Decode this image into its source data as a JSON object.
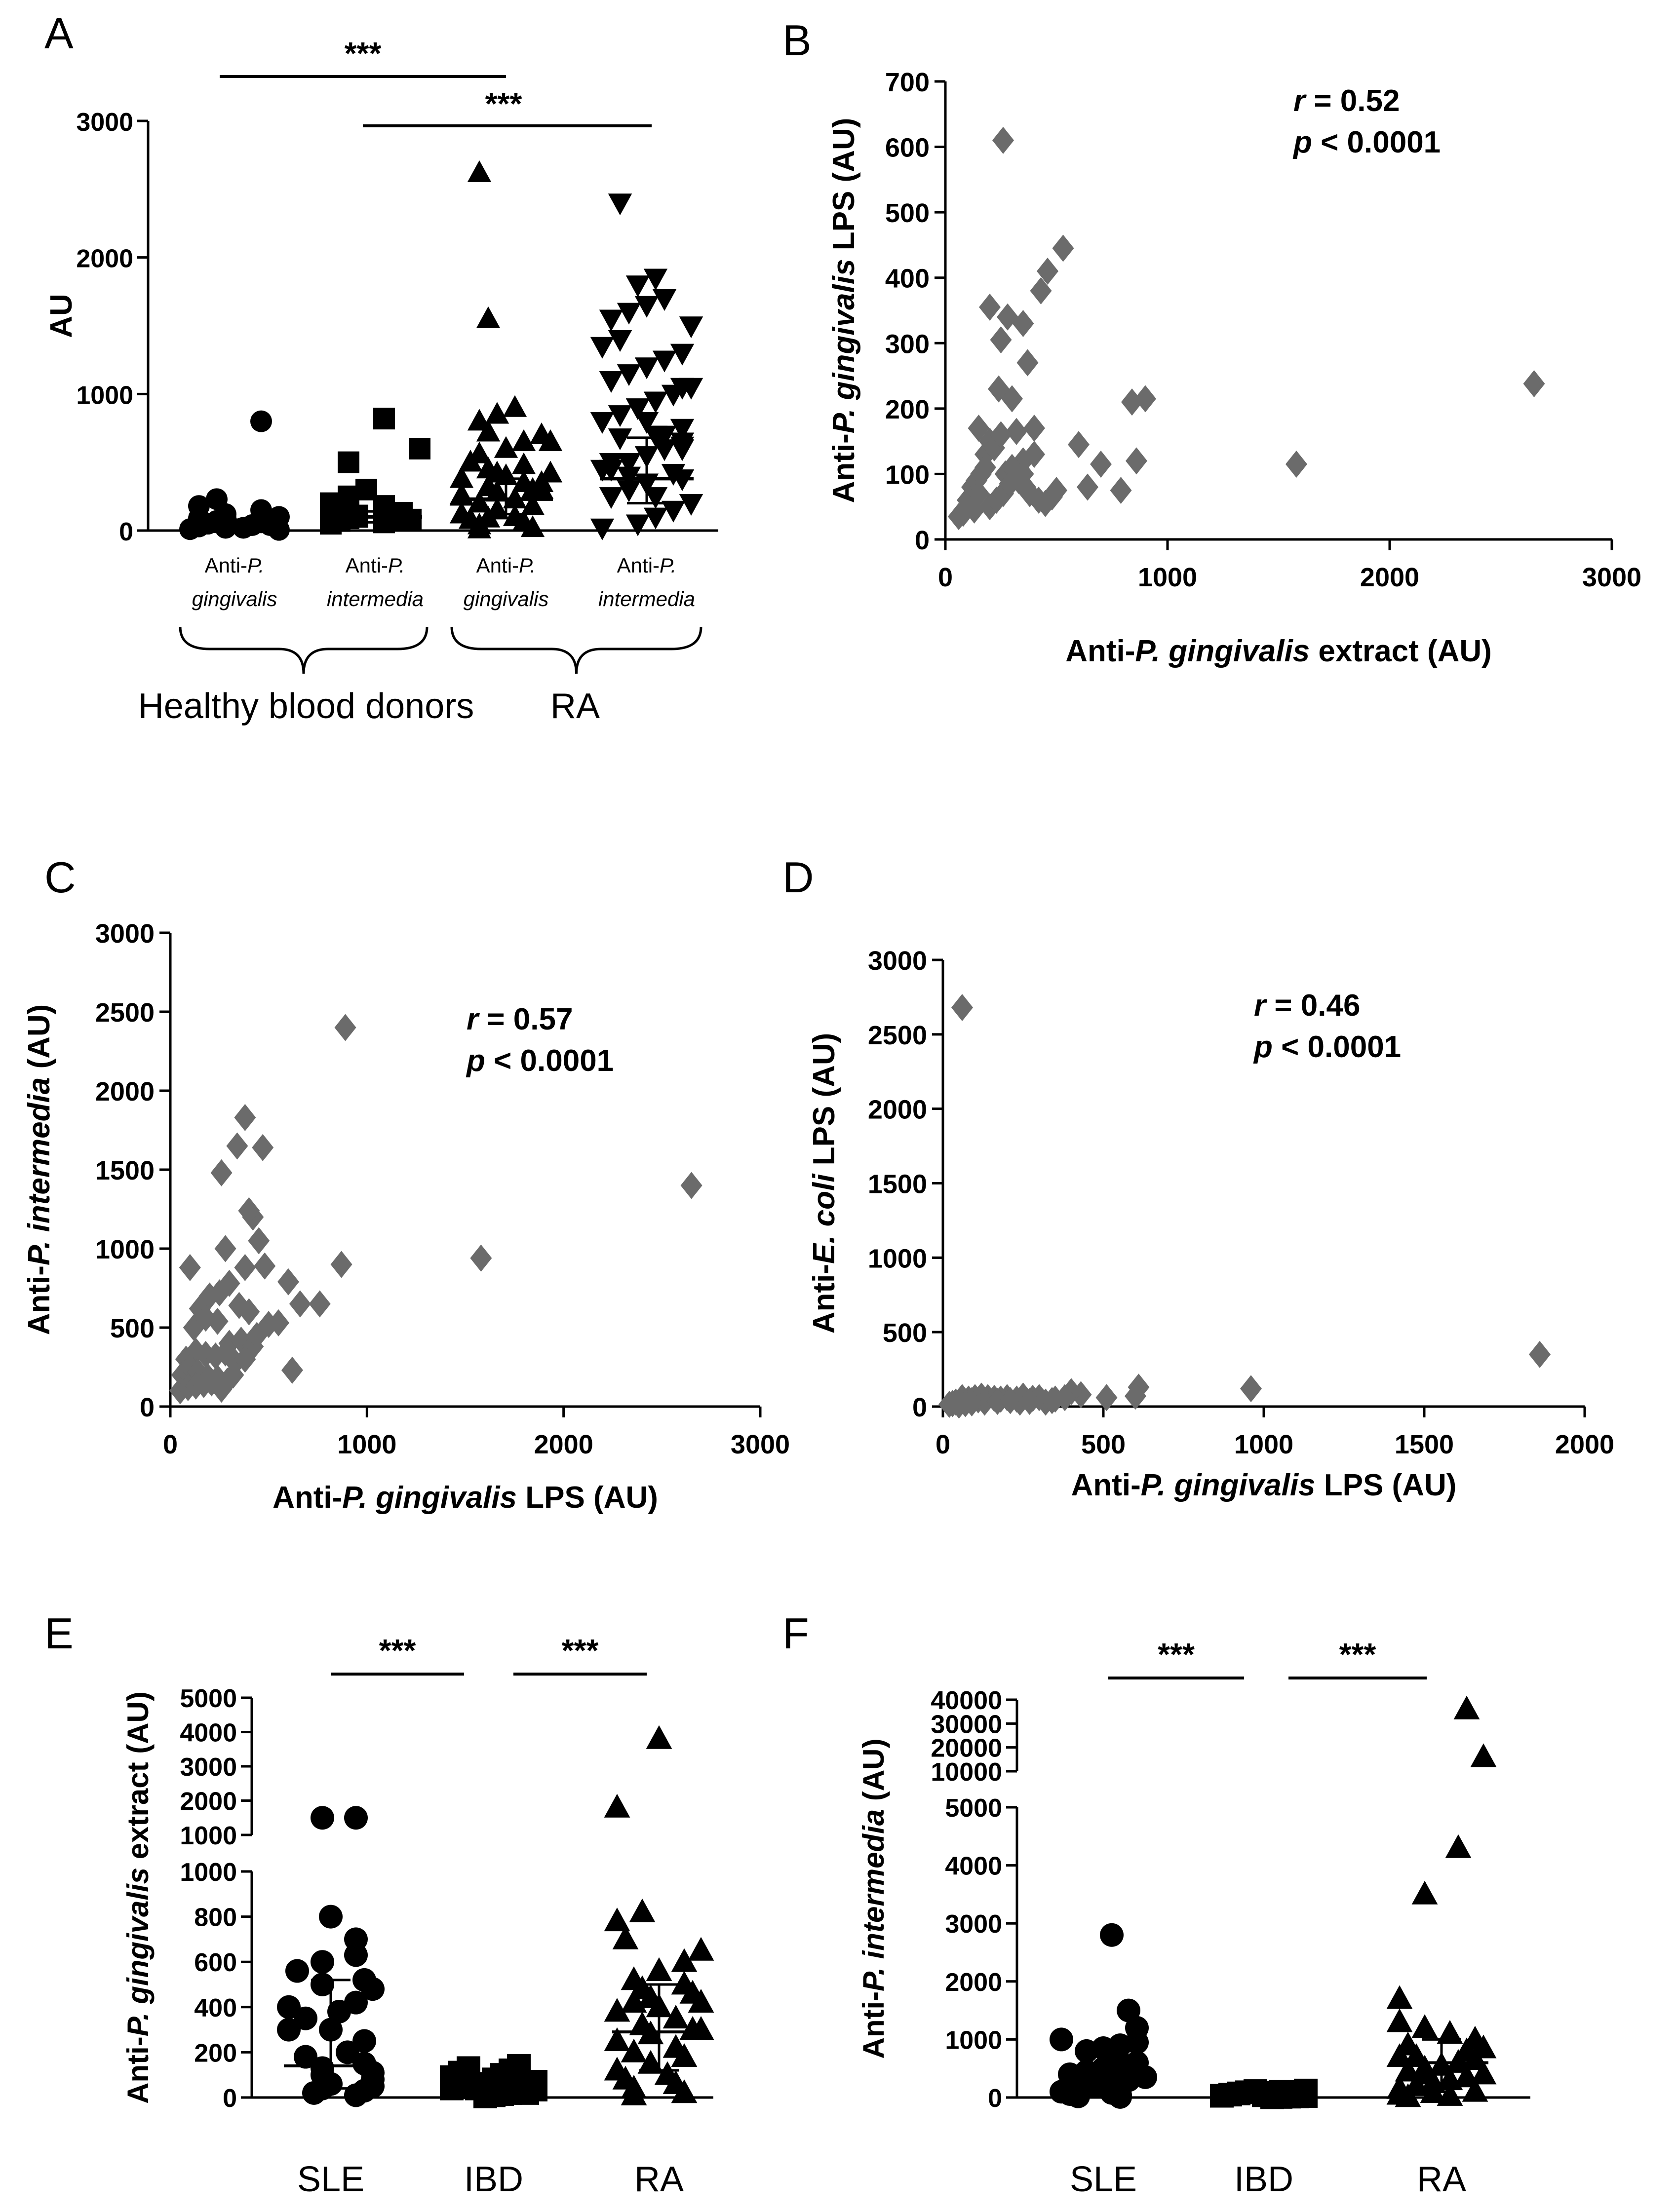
{
  "colors": {
    "ink": "#000000",
    "scatter_marker": "#6b6b6b",
    "background": "#ffffff"
  },
  "chart_data": [
    {
      "id": "A",
      "panel_label": "A",
      "type": "scatter",
      "ylabel": "AU",
      "ylim": [
        0,
        3000
      ],
      "yticks": [
        0,
        1000,
        2000,
        3000
      ],
      "group_labels": [
        {
          "pre": "Anti-",
          "it": "P.",
          "line2": "gingivalis"
        },
        {
          "pre": "Anti-",
          "it": "P.",
          "line2": "intermedia"
        },
        {
          "pre": "Anti-",
          "it": "P.",
          "line2": "gingivalis"
        },
        {
          "pre": "Anti-",
          "it": "P.",
          "line2": "intermedia"
        }
      ],
      "cohort_labels": [
        "Healthy blood donors",
        "RA"
      ],
      "significance": [
        "***",
        "***"
      ],
      "series": [
        {
          "marker": "circle",
          "median": 50,
          "iqr": [
            10,
            80
          ],
          "values": [
            800,
            230,
            180,
            150,
            120,
            100,
            90,
            80,
            70,
            60,
            50,
            40,
            30,
            20,
            10,
            5,
            60,
            40,
            20,
            90
          ]
        },
        {
          "marker": "square",
          "median": 100,
          "iqr": [
            60,
            140
          ],
          "values": [
            820,
            600,
            500,
            300,
            250,
            200,
            180,
            150,
            130,
            110,
            100,
            90,
            80,
            70,
            60,
            50,
            120,
            100,
            80
          ]
        },
        {
          "marker": "triangle-up",
          "median": 230,
          "iqr": [
            120,
            380
          ],
          "values": [
            2620,
            1550,
            900,
            850,
            800,
            720,
            700,
            650,
            600,
            560,
            500,
            480,
            450,
            420,
            400,
            380,
            350,
            320,
            300,
            280,
            250,
            230,
            200,
            180,
            150,
            120,
            100,
            80,
            60,
            40,
            20,
            10,
            500,
            350,
            260,
            150,
            90,
            300,
            650,
            420
          ]
        },
        {
          "marker": "triangle-down",
          "median": 380,
          "iqr": [
            200,
            680
          ],
          "values": [
            2400,
            1850,
            1800,
            1700,
            1650,
            1600,
            1550,
            1500,
            1400,
            1350,
            1300,
            1250,
            1200,
            1150,
            1100,
            1050,
            1000,
            950,
            900,
            850,
            800,
            750,
            700,
            680,
            650,
            600,
            550,
            500,
            450,
            420,
            400,
            380,
            350,
            300,
            250,
            200,
            150,
            100,
            50,
            20,
            900,
            700,
            600,
            500,
            300,
            1050,
            800,
            450,
            620,
            250
          ]
        }
      ]
    },
    {
      "id": "B",
      "panel_label": "B",
      "type": "scatter",
      "xlabel": {
        "pre": "Anti-",
        "it": "P. gingivalis",
        "post": " extract (AU)"
      },
      "ylabel": {
        "pre": "Anti-",
        "it": "P. gingivalis",
        "post": " LPS (AU)"
      },
      "xlim": [
        0,
        3000
      ],
      "ylim": [
        0,
        700
      ],
      "xticks": [
        0,
        1000,
        2000,
        3000
      ],
      "yticks": [
        0,
        100,
        200,
        300,
        400,
        500,
        600,
        700
      ],
      "annotation": {
        "r": "r",
        "r_val": " = 0.52",
        "p": "p",
        "p_val": " < 0.0001"
      },
      "x": [
        260,
        200,
        250,
        280,
        350,
        430,
        460,
        530,
        240,
        300,
        370,
        400,
        320,
        350,
        400,
        600,
        640,
        700,
        790,
        840,
        860,
        900,
        1580,
        2650,
        150,
        180,
        200,
        220,
        250,
        270,
        300,
        330,
        360,
        380,
        420,
        450,
        480,
        500,
        100,
        120,
        140,
        160,
        180,
        200,
        230,
        260,
        290,
        320,
        350,
        60,
        80,
        100,
        130,
        150
      ],
      "y": [
        610,
        355,
        305,
        340,
        330,
        380,
        410,
        445,
        230,
        215,
        270,
        170,
        165,
        120,
        130,
        145,
        80,
        115,
        75,
        210,
        120,
        215,
        115,
        238,
        170,
        130,
        150,
        140,
        160,
        100,
        110,
        90,
        80,
        70,
        60,
        55,
        65,
        75,
        60,
        80,
        90,
        100,
        110,
        50,
        60,
        70,
        85,
        95,
        100,
        35,
        40,
        50,
        45,
        70
      ]
    },
    {
      "id": "C",
      "panel_label": "C",
      "type": "scatter",
      "xlabel": {
        "pre": "Anti-",
        "it": "P. gingivalis",
        "post": " LPS (AU)"
      },
      "ylabel": {
        "pre": "Anti-",
        "it": "P. intermedia",
        "post": " (AU)"
      },
      "xlim": [
        0,
        3000
      ],
      "ylim": [
        0,
        3000
      ],
      "xticks": [
        0,
        1000,
        2000,
        3000
      ],
      "yticks": [
        0,
        500,
        1000,
        1500,
        2000,
        2500,
        3000
      ],
      "annotation": {
        "r": "r",
        "r_val": " = 0.57",
        "p": "p",
        "p_val": " < 0.0001"
      },
      "x": [
        890,
        2650,
        1580,
        380,
        340,
        470,
        260,
        420,
        400,
        450,
        280,
        380,
        480,
        870,
        760,
        600,
        660,
        550,
        620,
        100,
        150,
        200,
        250,
        300,
        350,
        400,
        120,
        180,
        240,
        300,
        360,
        420,
        80,
        130,
        180,
        230,
        280,
        330,
        60,
        100,
        140,
        190,
        240,
        290,
        50,
        90,
        130,
        170,
        210,
        260,
        320,
        380,
        440,
        500
      ],
      "y": [
        2400,
        1400,
        940,
        1830,
        1650,
        1640,
        1480,
        1200,
        1240,
        1050,
        1000,
        880,
        890,
        900,
        650,
        790,
        650,
        530,
        230,
        880,
        620,
        700,
        720,
        780,
        640,
        600,
        500,
        560,
        540,
        400,
        420,
        380,
        300,
        350,
        330,
        320,
        340,
        280,
        200,
        250,
        220,
        190,
        180,
        160,
        100,
        120,
        130,
        140,
        150,
        110,
        200,
        300,
        450,
        520
      ]
    },
    {
      "id": "D",
      "panel_label": "D",
      "type": "scatter",
      "xlabel": {
        "pre": "Anti-",
        "it": "P. gingivalis",
        "post": " LPS (AU)"
      },
      "ylabel": {
        "pre": "Anti-",
        "it": "E. coli",
        "post": " LPS (AU)"
      },
      "xlim": [
        0,
        2000
      ],
      "ylim": [
        0,
        3000
      ],
      "xticks": [
        0,
        500,
        1000,
        1500,
        2000
      ],
      "yticks": [
        0,
        500,
        1000,
        1500,
        2000,
        2500,
        3000
      ],
      "annotation": {
        "r": "r",
        "r_val": " = 0.46",
        "p": "p",
        "p_val": " < 0.0001"
      },
      "x": [
        60,
        1860,
        960,
        610,
        600,
        510,
        430,
        400,
        380,
        350,
        300,
        280,
        250,
        230,
        200,
        180,
        160,
        140,
        120,
        100,
        80,
        60,
        40,
        30,
        20,
        90,
        110,
        130,
        170,
        210,
        240,
        270,
        320,
        340,
        60,
        70,
        50,
        90
      ],
      "y": [
        2680,
        350,
        120,
        130,
        70,
        60,
        80,
        100,
        60,
        50,
        60,
        55,
        70,
        50,
        60,
        50,
        55,
        60,
        70,
        60,
        50,
        40,
        30,
        20,
        15,
        40,
        45,
        30,
        35,
        40,
        30,
        35,
        30,
        40,
        60,
        20,
        10,
        25
      ]
    },
    {
      "id": "E",
      "panel_label": "E",
      "type": "scatter",
      "ylabel": {
        "pre": "Anti-",
        "it": "P. gingivalis",
        "post": " extract (AU)"
      },
      "categories": [
        "SLE",
        "IBD",
        "RA"
      ],
      "broken_axis": true,
      "yticks_lower": [
        0,
        200,
        400,
        600,
        800,
        1000
      ],
      "yticks_upper": [
        1000,
        2000,
        3000,
        4000,
        5000
      ],
      "significance": [
        "***",
        "***"
      ],
      "series": [
        {
          "marker": "circle",
          "median": 140,
          "iqr": [
            40,
            520
          ],
          "values": [
            1500,
            1500,
            800,
            700,
            630,
            600,
            560,
            520,
            500,
            480,
            400,
            380,
            350,
            300,
            250,
            200,
            180,
            150,
            130,
            110,
            100,
            80,
            60,
            50,
            40,
            30,
            20,
            10,
            300,
            420
          ]
        },
        {
          "marker": "square",
          "median": 30,
          "iqr": [
            10,
            60
          ],
          "values": [
            140,
            130,
            120,
            110,
            100,
            90,
            80,
            70,
            60,
            55,
            50,
            45,
            40,
            35,
            30,
            25,
            20,
            15,
            10,
            5,
            60,
            40,
            20,
            90
          ]
        },
        {
          "marker": "triangle-up",
          "median": 290,
          "iqr": [
            120,
            500
          ],
          "values": [
            3800,
            1800,
            820,
            780,
            700,
            650,
            600,
            560,
            520,
            500,
            480,
            460,
            440,
            420,
            400,
            380,
            350,
            320,
            300,
            280,
            250,
            220,
            200,
            180,
            150,
            120,
            100,
            80,
            60,
            40,
            20,
            10,
            300,
            420
          ]
        }
      ]
    },
    {
      "id": "F",
      "panel_label": "F",
      "type": "scatter",
      "ylabel": {
        "pre": "Anti-",
        "it": "P. intermedia",
        "post": " (AU)"
      },
      "categories": [
        "SLE",
        "IBD",
        "RA"
      ],
      "broken_axis": true,
      "yticks_lower": [
        0,
        1000,
        2000,
        3000,
        4000,
        5000
      ],
      "yticks_upper": [
        10000,
        20000,
        30000,
        40000
      ],
      "significance": [
        "***",
        "***"
      ],
      "series": [
        {
          "marker": "circle",
          "median": 250,
          "iqr": [
            50,
            800
          ],
          "values": [
            2800,
            1500,
            1200,
            1000,
            950,
            900,
            850,
            800,
            700,
            600,
            550,
            500,
            450,
            400,
            350,
            300,
            250,
            200,
            150,
            100,
            80,
            60,
            40,
            20,
            10,
            600,
            300
          ]
        },
        {
          "marker": "square",
          "median": 30,
          "iqr": [
            10,
            60
          ],
          "values": [
            120,
            110,
            100,
            90,
            80,
            70,
            60,
            50,
            40,
            30,
            25,
            20,
            15,
            10,
            5,
            60,
            40,
            80,
            100,
            30
          ]
        },
        {
          "marker": "triangle-up",
          "median": 600,
          "iqr": [
            150,
            1000
          ],
          "values": [
            36000,
            16000,
            4300,
            3500,
            1700,
            1300,
            1200,
            1100,
            1000,
            900,
            850,
            800,
            700,
            650,
            600,
            550,
            500,
            450,
            400,
            350,
            300,
            250,
            200,
            150,
            100,
            80,
            50,
            30,
            10,
            700,
            400
          ]
        }
      ]
    }
  ]
}
